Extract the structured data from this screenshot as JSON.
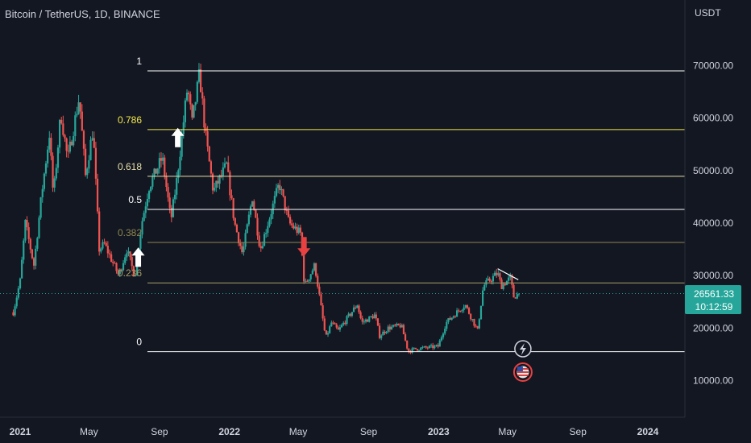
{
  "header": {
    "symbol_title": "Bitcoin / TetherUS, 1D, BINANCE",
    "axis_unit": "USDT"
  },
  "price_tag": {
    "price": "26561.33",
    "countdown": "10:12:59"
  },
  "colors": {
    "background": "#131722",
    "candle_up": "#26a69a",
    "candle_down": "#ef5350",
    "price_tag": "#26a69a",
    "fib_white": "#ffffff",
    "fib_786": "#f5e94a",
    "fib_618": "#e8e0a8",
    "fib_382": "#8c8650",
    "fib_236": "#a89e6a",
    "up_arrow": "#ffffff",
    "down_arrow": "#e84141"
  },
  "chart_data": {
    "type": "candlestick",
    "title": "Bitcoin / TetherUS, 1D, BINANCE",
    "ylabel": "USDT",
    "y_ticks": [
      10000,
      20000,
      30000,
      40000,
      50000,
      60000,
      70000
    ],
    "y_tick_labels": [
      "10000.00",
      "20000.00",
      "30000.00",
      "40000.00",
      "50000.00",
      "60000.00",
      "70000.00"
    ],
    "x_tick_labels": [
      "2021",
      "May",
      "Sep",
      "2022",
      "May",
      "Sep",
      "2023",
      "May",
      "Sep",
      "2024"
    ],
    "last_price": 26561.33,
    "fib_levels": [
      {
        "label": "1",
        "price": 69000
      },
      {
        "label": "0.786",
        "price": 57800
      },
      {
        "label": "0.618",
        "price": 48900
      },
      {
        "label": "0.5",
        "price": 42600
      },
      {
        "label": "0.382",
        "price": 36300
      },
      {
        "label": "0.236",
        "price": 28600
      },
      {
        "label": "0",
        "price": 15500
      }
    ],
    "price_path": [
      [
        "2020-12-20",
        23000
      ],
      [
        "2021-01-01",
        29000
      ],
      [
        "2021-01-10",
        40000
      ],
      [
        "2021-01-25",
        32000
      ],
      [
        "2021-02-08",
        46000
      ],
      [
        "2021-02-21",
        57000
      ],
      [
        "2021-02-28",
        45000
      ],
      [
        "2021-03-13",
        61000
      ],
      [
        "2021-03-25",
        52000
      ],
      [
        "2021-04-14",
        64000
      ],
      [
        "2021-04-25",
        49000
      ],
      [
        "2021-05-08",
        58000
      ],
      [
        "2021-05-19",
        35000
      ],
      [
        "2021-05-28",
        36000
      ],
      [
        "2021-06-22",
        30000
      ],
      [
        "2021-07-06",
        35000
      ],
      [
        "2021-07-20",
        29800
      ],
      [
        "2021-08-01",
        40000
      ],
      [
        "2021-08-14",
        47000
      ],
      [
        "2021-09-06",
        52500
      ],
      [
        "2021-09-21",
        40500
      ],
      [
        "2021-10-01",
        48000
      ],
      [
        "2021-10-20",
        66000
      ],
      [
        "2021-10-28",
        59000
      ],
      [
        "2021-11-10",
        68500
      ],
      [
        "2021-11-20",
        57000
      ],
      [
        "2021-12-04",
        46000
      ],
      [
        "2021-12-27",
        51000
      ],
      [
        "2022-01-10",
        40000
      ],
      [
        "2022-01-24",
        34000
      ],
      [
        "2022-02-10",
        45000
      ],
      [
        "2022-02-24",
        35000
      ],
      [
        "2022-03-29",
        47500
      ],
      [
        "2022-04-15",
        40000
      ],
      [
        "2022-05-05",
        38000
      ],
      [
        "2022-05-12",
        28000
      ],
      [
        "2022-05-30",
        32000
      ],
      [
        "2022-06-18",
        18000
      ],
      [
        "2022-06-28",
        21000
      ],
      [
        "2022-07-10",
        19500
      ],
      [
        "2022-08-12",
        24500
      ],
      [
        "2022-08-20",
        21000
      ],
      [
        "2022-09-12",
        22500
      ],
      [
        "2022-09-20",
        18500
      ],
      [
        "2022-10-05",
        20000
      ],
      [
        "2022-10-28",
        20500
      ],
      [
        "2022-11-09",
        15500
      ],
      [
        "2022-11-20",
        16000
      ],
      [
        "2022-12-31",
        16500
      ],
      [
        "2023-01-14",
        21000
      ],
      [
        "2023-02-16",
        24500
      ],
      [
        "2023-03-10",
        19500
      ],
      [
        "2023-03-20",
        28000
      ],
      [
        "2023-04-14",
        30500
      ],
      [
        "2023-04-20",
        28000
      ],
      [
        "2023-05-06",
        29500
      ],
      [
        "2023-05-12",
        26000
      ],
      [
        "2023-05-22",
        26561
      ]
    ],
    "annotations": [
      {
        "type": "up-arrow",
        "date": "2021-07-26",
        "price": 33500
      },
      {
        "type": "up-arrow",
        "date": "2021-10-03",
        "price": 56300
      },
      {
        "type": "down-arrow",
        "date": "2022-05-11",
        "price": 35500
      },
      {
        "type": "trendline",
        "from": [
          "2023-04-14",
          31300
        ],
        "to": [
          "2023-05-20",
          29200
        ]
      }
    ],
    "event_markers": [
      {
        "type": "lightning-icon",
        "date": "2023-05-28"
      },
      {
        "type": "us-flag-icon",
        "date": "2023-05-28"
      }
    ]
  }
}
